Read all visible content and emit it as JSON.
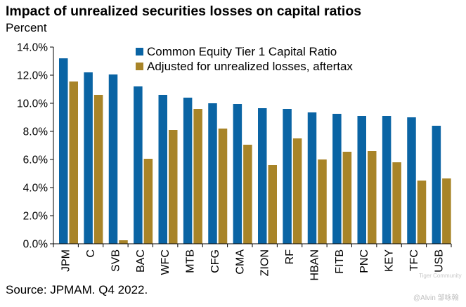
{
  "header": {
    "title": "Impact of unrealized securities losses on capital ratios",
    "subtitle": "Percent"
  },
  "footer": {
    "source": "Source: JPMAM. Q4 2022."
  },
  "watermark": {
    "brand": "Tiger Community",
    "author": "@Alvin 邹咏翰"
  },
  "colors": {
    "series1": "#0a64a4",
    "series2": "#a88428",
    "axis": "#000000"
  },
  "chart_data": {
    "type": "bar",
    "title": "Impact of unrealized securities losses on capital ratios",
    "ylabel": "Percent",
    "xlabel": "",
    "ylim": [
      0,
      14
    ],
    "yticks": [
      0,
      2,
      4,
      6,
      8,
      10,
      12,
      14
    ],
    "ytick_labels": [
      "0.0%",
      "2.0%",
      "4.0%",
      "6.0%",
      "8.0%",
      "10.0%",
      "12.0%",
      "14.0%"
    ],
    "grid": false,
    "legend_position": "top-center",
    "categories": [
      "JPM",
      "C",
      "SVB",
      "BAC",
      "WFC",
      "MTB",
      "CFG",
      "CMA",
      "ZION",
      "RF",
      "HBAN",
      "FITB",
      "PNC",
      "KEY",
      "TFC",
      "USB"
    ],
    "series": [
      {
        "name": "Common Equity Tier 1 Capital Ratio",
        "values": [
          13.2,
          12.2,
          12.05,
          11.2,
          10.6,
          10.4,
          10.0,
          9.95,
          9.65,
          9.6,
          9.35,
          9.25,
          9.1,
          9.1,
          9.0,
          8.4
        ]
      },
      {
        "name": "Adjusted for unrealized losses, aftertax",
        "values": [
          11.55,
          10.6,
          0.25,
          6.05,
          8.1,
          9.6,
          8.2,
          7.05,
          5.6,
          7.5,
          6.0,
          6.55,
          6.6,
          5.8,
          4.5,
          4.65
        ]
      }
    ]
  }
}
